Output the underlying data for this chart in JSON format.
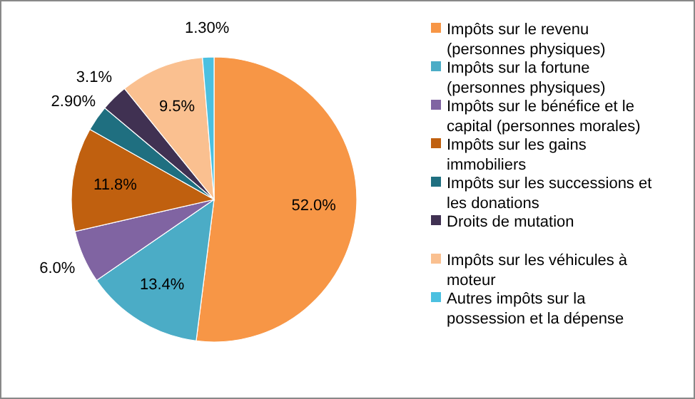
{
  "chart_data": {
    "type": "pie",
    "categories": [
      "Impôts sur le revenu (personnes physiques)",
      "Impôts sur la fortune (personnes physiques)",
      "Impôts sur le bénéfice et le capital (personnes morales)",
      "Impôts sur les gains immobiliers",
      "Impôts sur les successions et les donations",
      "Droits de mutation",
      "Impôts sur les véhicules à moteur",
      "Autres impôts sur la possession et la dépense"
    ],
    "values": [
      52.0,
      13.4,
      6.0,
      11.8,
      2.9,
      3.1,
      9.5,
      1.3
    ],
    "value_labels": [
      "52.0%",
      "13.4%",
      "6.0%",
      "11.8%",
      "2.90%",
      "3.1%",
      "9.5%",
      "1.30%"
    ],
    "colors": [
      "#f79646",
      "#4bacc6",
      "#8064a2",
      "#c0600f",
      "#1f6f80",
      "#403152",
      "#fac090",
      "#4bc0e0"
    ],
    "legend": "right"
  }
}
